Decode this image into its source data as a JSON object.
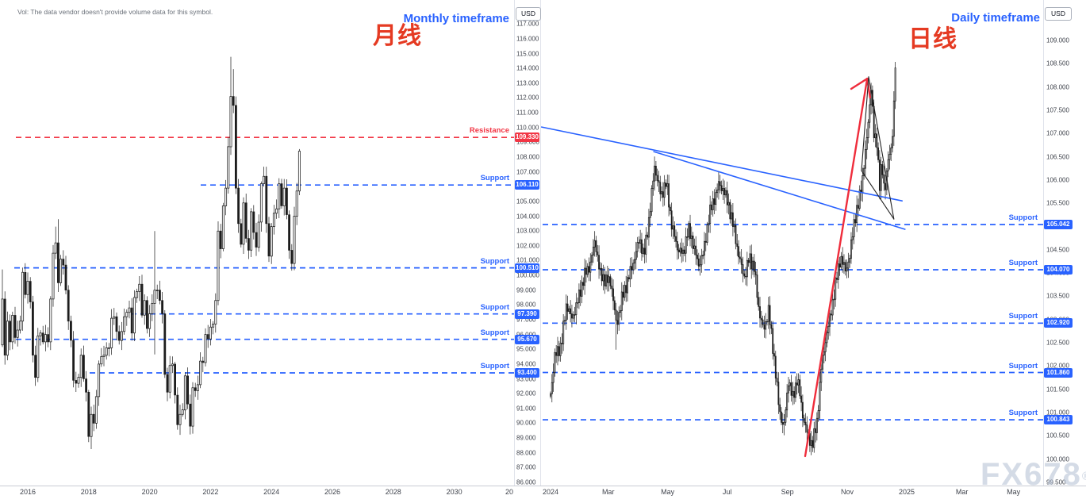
{
  "ui": {
    "volume_note": "Vol: The data vendor doesn't provide volume data for this symbol.",
    "watermark": "FX678",
    "watermark_mark": "®"
  },
  "colors": {
    "accent_blue": "#2962ff",
    "accent_red": "#f23645",
    "cn_red": "#e53a22",
    "candle_up": "#ffffff",
    "candle_down": "#1c1c1c",
    "candle_border": "#1c1c1c",
    "annotation_red": "#ef2d3c",
    "annotation_black": "#222222",
    "axis_text": "#40444d"
  },
  "panels": {
    "monthly": {
      "title_cn": "月线",
      "title_en": "Monthly timeframe",
      "currency": "USD",
      "price_axis": {
        "min": 86,
        "max": 117,
        "step": 1,
        "decimals": 3
      },
      "time_labels": [
        "2016",
        "2018",
        "2020",
        "2022",
        "2024",
        "2026",
        "2028",
        "2030",
        "20"
      ],
      "levels": [
        {
          "kind": "resistance",
          "label": "Resistance",
          "value": "109.330"
        },
        {
          "kind": "support",
          "label": "Support",
          "value": "106.110"
        },
        {
          "kind": "support",
          "label": "Support",
          "value": "100.510"
        },
        {
          "kind": "support",
          "label": "Support",
          "value": "97.390"
        },
        {
          "kind": "support",
          "label": "Support",
          "value": "95.670"
        },
        {
          "kind": "support",
          "label": "Support",
          "value": "93.400"
        }
      ]
    },
    "daily": {
      "title_cn": "日线",
      "title_en": "Daily timeframe",
      "currency": "USD",
      "price_axis": {
        "min": 99.5,
        "max": 109,
        "step": 0.5,
        "decimals": 3
      },
      "time_labels": [
        "2024",
        "Mar",
        "May",
        "Jul",
        "Sep",
        "Nov",
        "2025",
        "Mar",
        "May"
      ],
      "levels": [
        {
          "kind": "support",
          "label": "Support",
          "value": "105.042"
        },
        {
          "kind": "support",
          "label": "Support",
          "value": "104.070"
        },
        {
          "kind": "support",
          "label": "Support",
          "value": "102.920"
        },
        {
          "kind": "support",
          "label": "Support",
          "value": "101.860"
        },
        {
          "kind": "support",
          "label": "Support",
          "value": "100.843"
        }
      ]
    }
  },
  "chart_data": [
    {
      "type": "candlestick",
      "panel": "monthly",
      "interval": "1M",
      "start": "2015-03",
      "open_first": 95.3,
      "closes": [
        98.4,
        94.6,
        96.9,
        95.5,
        97.3,
        95.8,
        96.3,
        96.9,
        100.2,
        98.7,
        99.6,
        98.2,
        94.6,
        93.1,
        95.9,
        96.1,
        95.5,
        96.0,
        95.5,
        98.4,
        101.5,
        102.2,
        99.5,
        101.1,
        100.7,
        99.0,
        96.9,
        95.6,
        92.9,
        92.7,
        93.1,
        94.6,
        93.0,
        92.1,
        89.1,
        90.6,
        90.0,
        91.8,
        94.0,
        94.5,
        94.6,
        95.1,
        95.1,
        97.1,
        97.2,
        96.2,
        95.6,
        96.2,
        97.2,
        97.5,
        97.8,
        96.1,
        98.5,
        98.9,
        99.4,
        97.3,
        98.3,
        96.4,
        97.4,
        98.1,
        99.0,
        99.0,
        98.3,
        97.4,
        93.3,
        92.1,
        93.9,
        94.0,
        91.9,
        89.9,
        90.6,
        90.9,
        93.2,
        91.3,
        89.8,
        92.4,
        92.2,
        92.6,
        94.2,
        94.1,
        96.0,
        95.7,
        96.5,
        96.7,
        98.3,
        103.0,
        101.8,
        104.7,
        105.9,
        108.7,
        112.1,
        111.5,
        105.9,
        103.5,
        102.1,
        104.9,
        102.5,
        101.7,
        104.3,
        102.9,
        101.9,
        103.6,
        106.2,
        106.7,
        103.5,
        101.3,
        103.3,
        104.2,
        104.5,
        106.2,
        104.7,
        105.9,
        104.1,
        101.7,
        100.8,
        104.0,
        105.7,
        108.4
      ],
      "hl_overrides": {
        "0": {
          "high": 100.4
        },
        "21": {
          "high": 103.3
        },
        "22": {
          "high": 103.8
        },
        "35": {
          "low": 88.25
        },
        "60": {
          "high": 102.99,
          "low": 94.65
        },
        "70": {
          "low": 89.21
        },
        "90": {
          "high": 114.78
        },
        "91": {
          "high": 113.95
        },
        "103": {
          "high": 107.35
        },
        "117": {
          "high": 108.54
        }
      },
      "levels": {
        "resistance": [
          109.33
        ],
        "support": [
          106.11,
          100.51,
          97.39,
          95.67,
          93.4
        ]
      }
    },
    {
      "type": "candlestick",
      "panel": "daily",
      "interval": "1D",
      "year": 2024,
      "open_first": 101.35,
      "keyframes": [
        [
          0.0,
          101.4
        ],
        [
          0.012,
          102.2
        ],
        [
          0.03,
          102.45
        ],
        [
          0.045,
          103.35
        ],
        [
          0.06,
          103.0
        ],
        [
          0.08,
          103.5
        ],
        [
          0.095,
          103.95
        ],
        [
          0.11,
          104.15
        ],
        [
          0.125,
          104.7
        ],
        [
          0.14,
          103.95
        ],
        [
          0.155,
          103.85
        ],
        [
          0.17,
          103.8
        ],
        [
          0.185,
          102.85
        ],
        [
          0.2,
          103.45
        ],
        [
          0.215,
          103.8
        ],
        [
          0.235,
          104.3
        ],
        [
          0.25,
          104.75
        ],
        [
          0.262,
          104.35
        ],
        [
          0.278,
          105.25
        ],
        [
          0.292,
          106.3
        ],
        [
          0.31,
          105.65
        ],
        [
          0.325,
          105.95
        ],
        [
          0.34,
          105.05
        ],
        [
          0.355,
          104.55
        ],
        [
          0.372,
          104.4
        ],
        [
          0.386,
          104.95
        ],
        [
          0.4,
          104.65
        ],
        [
          0.415,
          104.15
        ],
        [
          0.43,
          104.45
        ],
        [
          0.445,
          105.25
        ],
        [
          0.46,
          105.6
        ],
        [
          0.472,
          105.9
        ],
        [
          0.485,
          105.8
        ],
        [
          0.5,
          105.45
        ],
        [
          0.515,
          104.95
        ],
        [
          0.53,
          104.3
        ],
        [
          0.545,
          103.9
        ],
        [
          0.558,
          104.35
        ],
        [
          0.572,
          104.1
        ],
        [
          0.585,
          103.2
        ],
        [
          0.598,
          102.75
        ],
        [
          0.612,
          103.2
        ],
        [
          0.628,
          102.15
        ],
        [
          0.642,
          101.05
        ],
        [
          0.655,
          100.65
        ],
        [
          0.668,
          101.7
        ],
        [
          0.68,
          101.3
        ],
        [
          0.693,
          101.75
        ],
        [
          0.708,
          100.95
        ],
        [
          0.722,
          100.5
        ],
        [
          0.735,
          100.3
        ],
        [
          0.748,
          100.8
        ],
        [
          0.76,
          101.95
        ],
        [
          0.772,
          102.55
        ],
        [
          0.785,
          103.05
        ],
        [
          0.8,
          103.75
        ],
        [
          0.814,
          104.35
        ],
        [
          0.828,
          104.05
        ],
        [
          0.84,
          104.35
        ],
        [
          0.853,
          105.15
        ],
        [
          0.864,
          105.45
        ],
        [
          0.875,
          106.0
        ],
        [
          0.886,
          106.7
        ],
        [
          0.895,
          107.55
        ],
        [
          0.9,
          108.0
        ],
        [
          0.908,
          106.95
        ],
        [
          0.916,
          106.85
        ],
        [
          0.924,
          105.85
        ],
        [
          0.93,
          106.35
        ],
        [
          0.938,
          105.75
        ],
        [
          0.948,
          106.4
        ],
        [
          0.956,
          106.7
        ],
        [
          0.962,
          107.2
        ],
        [
          0.968,
          108.45
        ]
      ],
      "hl_overrides": [
        {
          "f": 0.185,
          "low": 102.35
        },
        {
          "f": 0.655,
          "low": 100.51
        },
        {
          "f": 0.735,
          "low": 100.15
        },
        {
          "f": 0.9,
          "high": 108.09
        },
        {
          "f": 0.968,
          "high": 108.54
        }
      ],
      "levels": {
        "support": [
          105.042,
          104.07,
          102.92,
          101.86,
          100.843
        ]
      },
      "annotations": {
        "trendlines": [
          [
            [
              -0.025,
              107.14
            ],
            [
              0.987,
              105.55
            ]
          ],
          [
            [
              0.29,
              106.61
            ],
            [
              0.995,
              104.94
            ]
          ]
        ],
        "arrow_shaft": [
          [
            0.715,
            100.06
          ],
          [
            0.889,
            108.18
          ]
        ],
        "arrow_barbs": [
          [
            [
              0.889,
              108.18
            ],
            [
              0.844,
              107.96
            ]
          ],
          [
            [
              0.889,
              108.18
            ],
            [
              0.897,
              107.77
            ]
          ]
        ],
        "triangle": [
          [
            [
              0.893,
              108.22
            ],
            [
              0.964,
              105.16
            ]
          ],
          [
            [
              0.893,
              108.22
            ],
            [
              0.873,
              106.2
            ]
          ],
          [
            [
              0.873,
              106.2
            ],
            [
              0.964,
              105.16
            ]
          ]
        ]
      }
    }
  ]
}
